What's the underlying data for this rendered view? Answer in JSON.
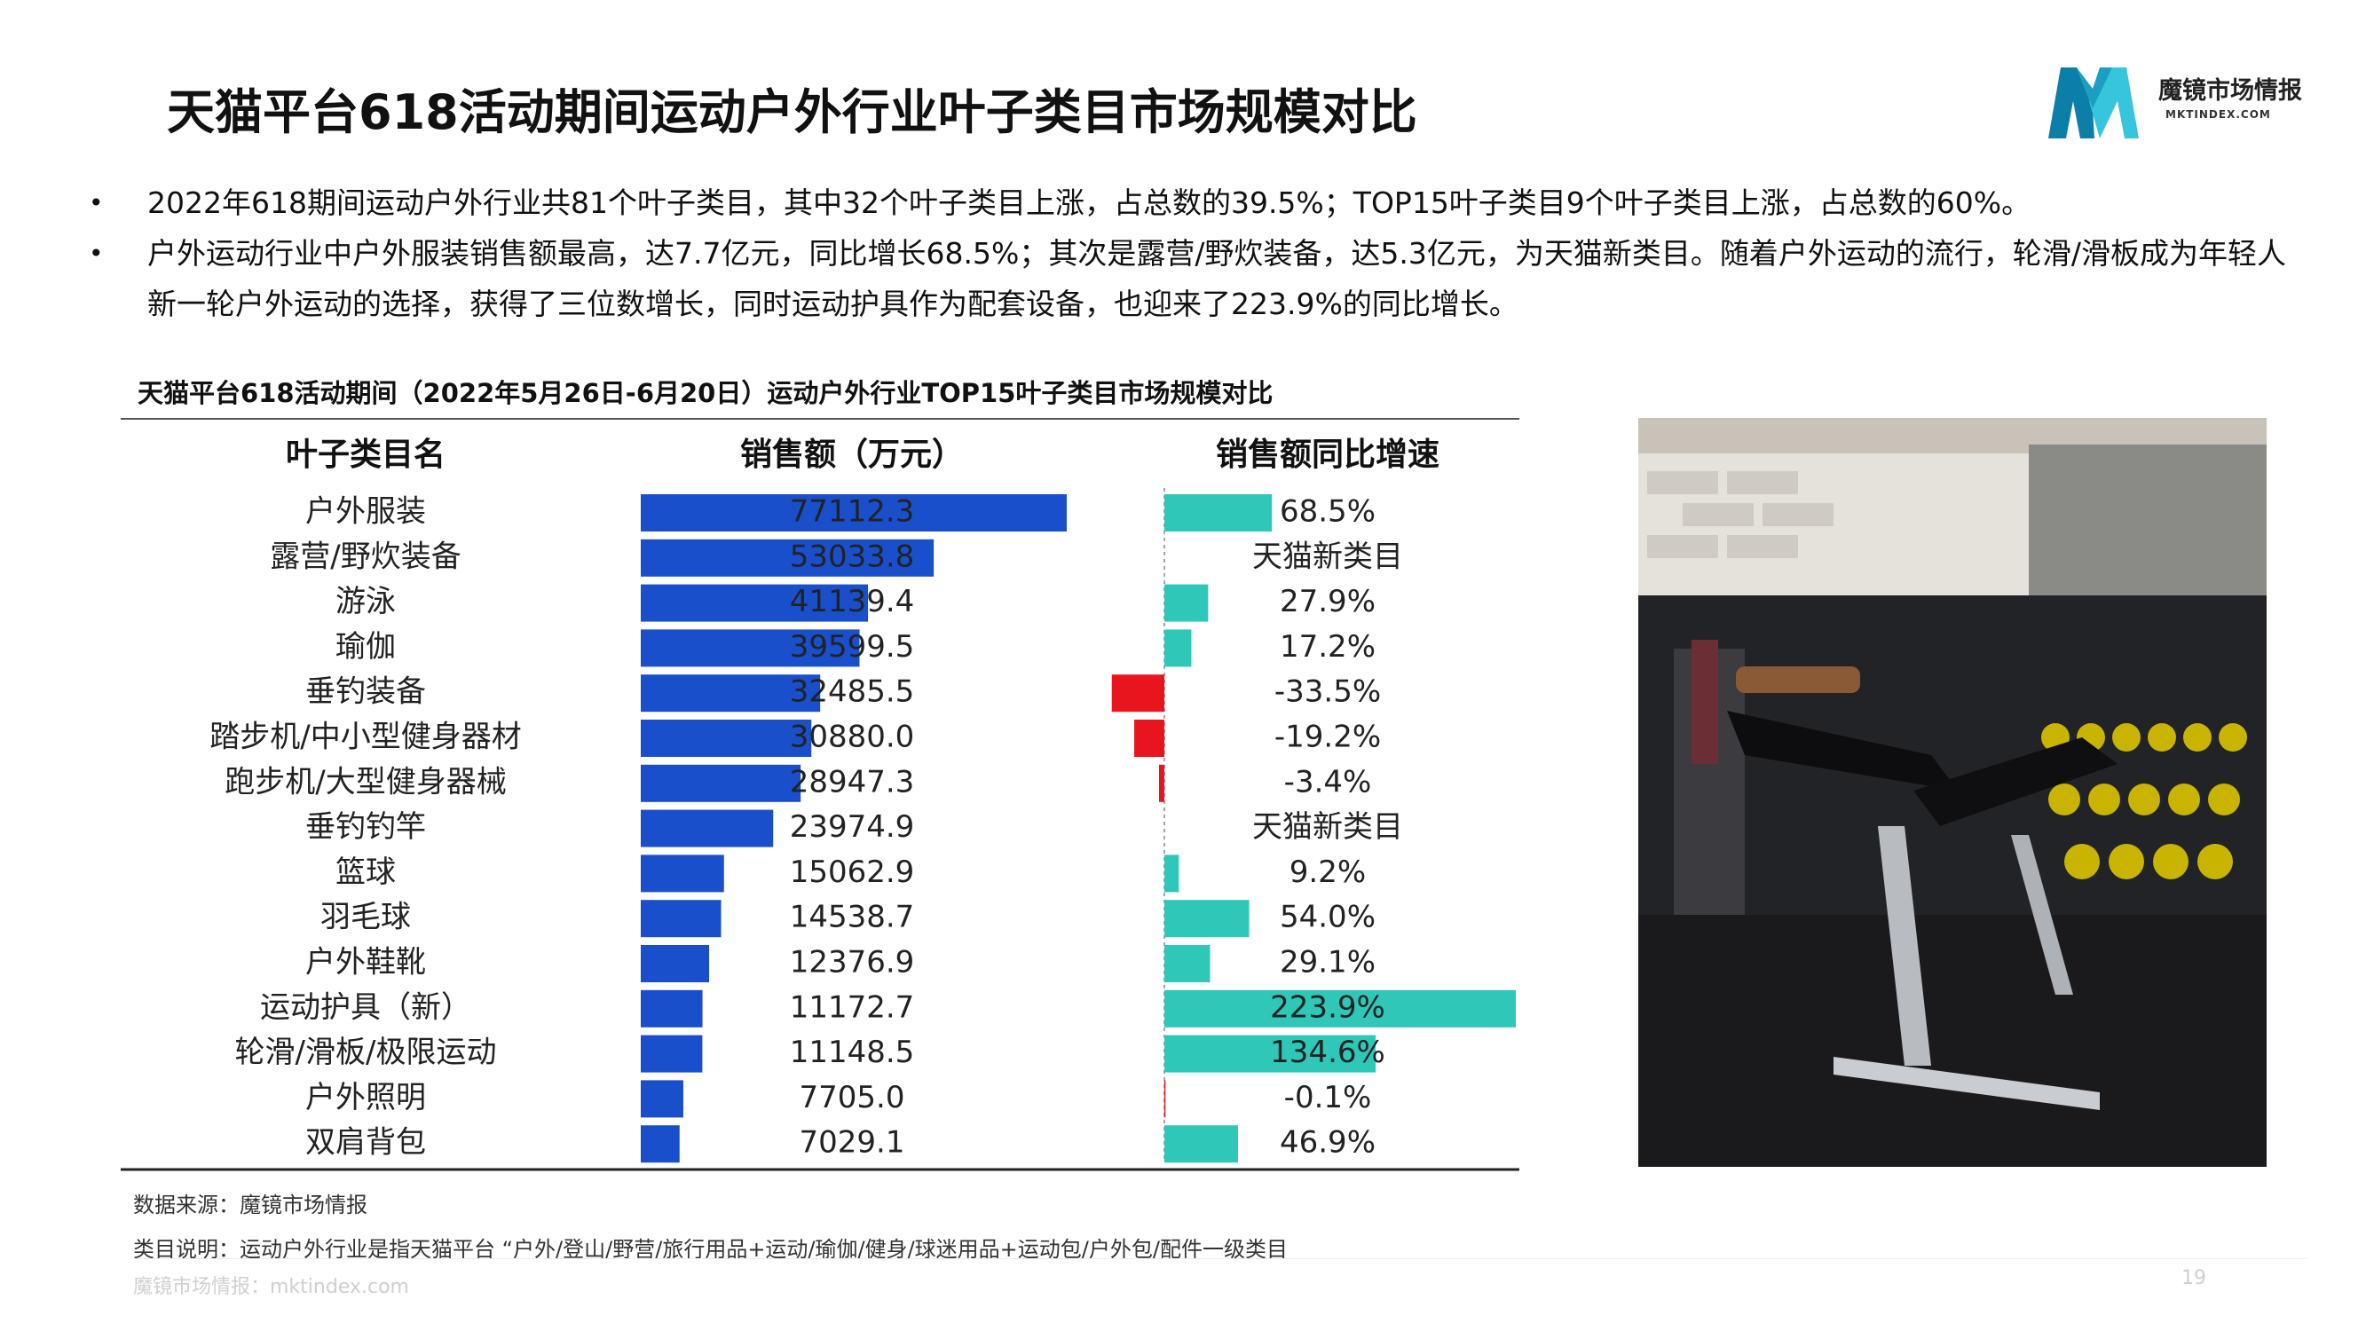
{
  "slide": {
    "title": "天猫平台618活动期间运动户外行业叶子类目市场规模对比",
    "page_number": "19"
  },
  "logo": {
    "name": "魔镜市场情报",
    "url": "MKTINDEX.COM",
    "colors": {
      "dark": "#0b7fa8",
      "light": "#37c4dd"
    }
  },
  "bullets": [
    "2022年618期间运动户外行业共81个叶子类目，其中32个叶子类目上涨，占总数的39.5%；TOP15叶子类目9个叶子类目上涨，占总数的60%。",
    "户外运动行业中户外服装销售额最高，达7.7亿元，同比增长68.5%；其次是露营/野炊装备，达5.3亿元，为天猫新类目。随着户外运动的流行，轮滑/滑板成为年轻人新一轮户外运动的选择，获得了三位数增长，同时运动护具作为配套设备，也迎来了223.9%的同比增长。"
  ],
  "chart_data": {
    "type": "table",
    "title": "天猫平台618活动期间（2022年5月26日-6月20日）运动户外行业TOP15叶子类目市场规模对比",
    "columns": [
      "叶子类目名",
      "销售额（万元）",
      "销售额同比增速"
    ],
    "categories": [
      "户外服装",
      "露营/野炊装备",
      "游泳",
      "瑜伽",
      "垂钓装备",
      "踏步机/中小型健身器材",
      "跑步机/大型健身器械",
      "垂钓钓竿",
      "篮球",
      "羽毛球",
      "户外鞋靴",
      "运动护具（新）",
      "轮滑/滑板/极限运动",
      "户外照明",
      "双肩背包"
    ],
    "sales": [
      77112.3,
      53033.8,
      41139.4,
      39599.5,
      32485.5,
      30880.0,
      28947.3,
      23974.9,
      15062.9,
      14538.7,
      12376.9,
      11172.7,
      11148.5,
      7705.0,
      7029.1
    ],
    "sales_labels": [
      "77112.3",
      "53033.8",
      "41139.4",
      "39599.5",
      "32485.5",
      "30880.0",
      "28947.3",
      "23974.9",
      "15062.9",
      "14538.7",
      "12376.9",
      "11172.7",
      "11148.5",
      "7705.0",
      "7029.1"
    ],
    "growth": [
      68.5,
      null,
      27.9,
      17.2,
      -33.5,
      -19.2,
      -3.4,
      null,
      9.2,
      54.0,
      29.1,
      223.9,
      134.6,
      -0.1,
      46.9
    ],
    "growth_labels": [
      "68.5%",
      "天猫新类目",
      "27.9%",
      "17.2%",
      "-33.5%",
      "-19.2%",
      "-3.4%",
      "天猫新类目",
      "9.2%",
      "54.0%",
      "29.1%",
      "223.9%",
      "134.6%",
      "-0.1%",
      "46.9%"
    ],
    "colors": {
      "sales_bar": "#1a4fcc",
      "growth_positive": "#2ec7b8",
      "growth_negative": "#e8141e"
    }
  },
  "footnotes": {
    "source": "数据来源：魔镜市场情报",
    "note": "类目说明：运动户外行业是指天猫平台 “户外/登山/野营/旅行用品+运动/瑜伽/健身/球迷用品+运动包/户外包/配件一级类目",
    "site": "魔镜市场情报：mktindex.com"
  }
}
